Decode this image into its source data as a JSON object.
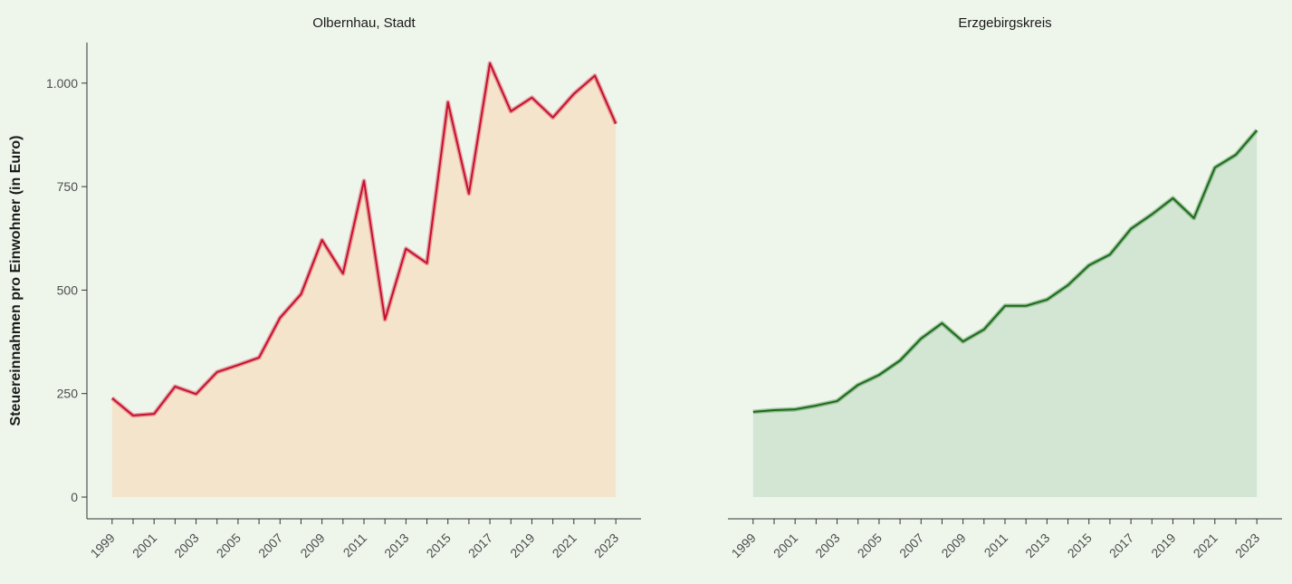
{
  "chart_data": [
    {
      "type": "area",
      "title": "Olbernhau, Stadt",
      "ylabel": "Steuereinnahmen pro Einwohner (in Euro)",
      "x": [
        1999,
        2000,
        2001,
        2002,
        2003,
        2004,
        2005,
        2006,
        2007,
        2008,
        2009,
        2010,
        2011,
        2012,
        2013,
        2014,
        2015,
        2016,
        2017,
        2018,
        2019,
        2020,
        2021,
        2022,
        2023
      ],
      "values": [
        239,
        197,
        201,
        267,
        249,
        302,
        319,
        337,
        433,
        490,
        621,
        540,
        764,
        429,
        600,
        565,
        954,
        733,
        1048,
        932,
        965,
        917,
        974,
        1018,
        902
      ],
      "color": "#c8102e",
      "fill": "#f5e4cc",
      "xlim": [
        1997.8,
        2024.2
      ],
      "xticks": [
        1999,
        2001,
        2003,
        2005,
        2007,
        2009,
        2011,
        2013,
        2015,
        2017,
        2019,
        2021,
        2023
      ],
      "ylim": [
        -52.5,
        1098
      ],
      "yticks": [
        0,
        250,
        500,
        750,
        {
          "value": 1000,
          "label": "1.000"
        }
      ]
    },
    {
      "type": "area",
      "title": "Erzgebirgskreis",
      "x": [
        1999,
        2000,
        2001,
        2002,
        2003,
        2004,
        2005,
        2006,
        2007,
        2008,
        2009,
        2010,
        2011,
        2012,
        2013,
        2014,
        2015,
        2016,
        2017,
        2018,
        2019,
        2020,
        2021,
        2022,
        2023
      ],
      "values": [
        206,
        210,
        212,
        221,
        232,
        271,
        295,
        330,
        383,
        420,
        376,
        405,
        462,
        462,
        477,
        512,
        560,
        586,
        648,
        683,
        722,
        674,
        796,
        827,
        886
      ],
      "color": "#1a6b1a",
      "fill": "#d3e6d3",
      "xlim": [
        1997.8,
        2024.2
      ],
      "xticks": [
        1999,
        2001,
        2003,
        2005,
        2007,
        2009,
        2011,
        2013,
        2015,
        2017,
        2019,
        2021,
        2023
      ],
      "ylim": [
        -52.5,
        1098
      ]
    }
  ]
}
